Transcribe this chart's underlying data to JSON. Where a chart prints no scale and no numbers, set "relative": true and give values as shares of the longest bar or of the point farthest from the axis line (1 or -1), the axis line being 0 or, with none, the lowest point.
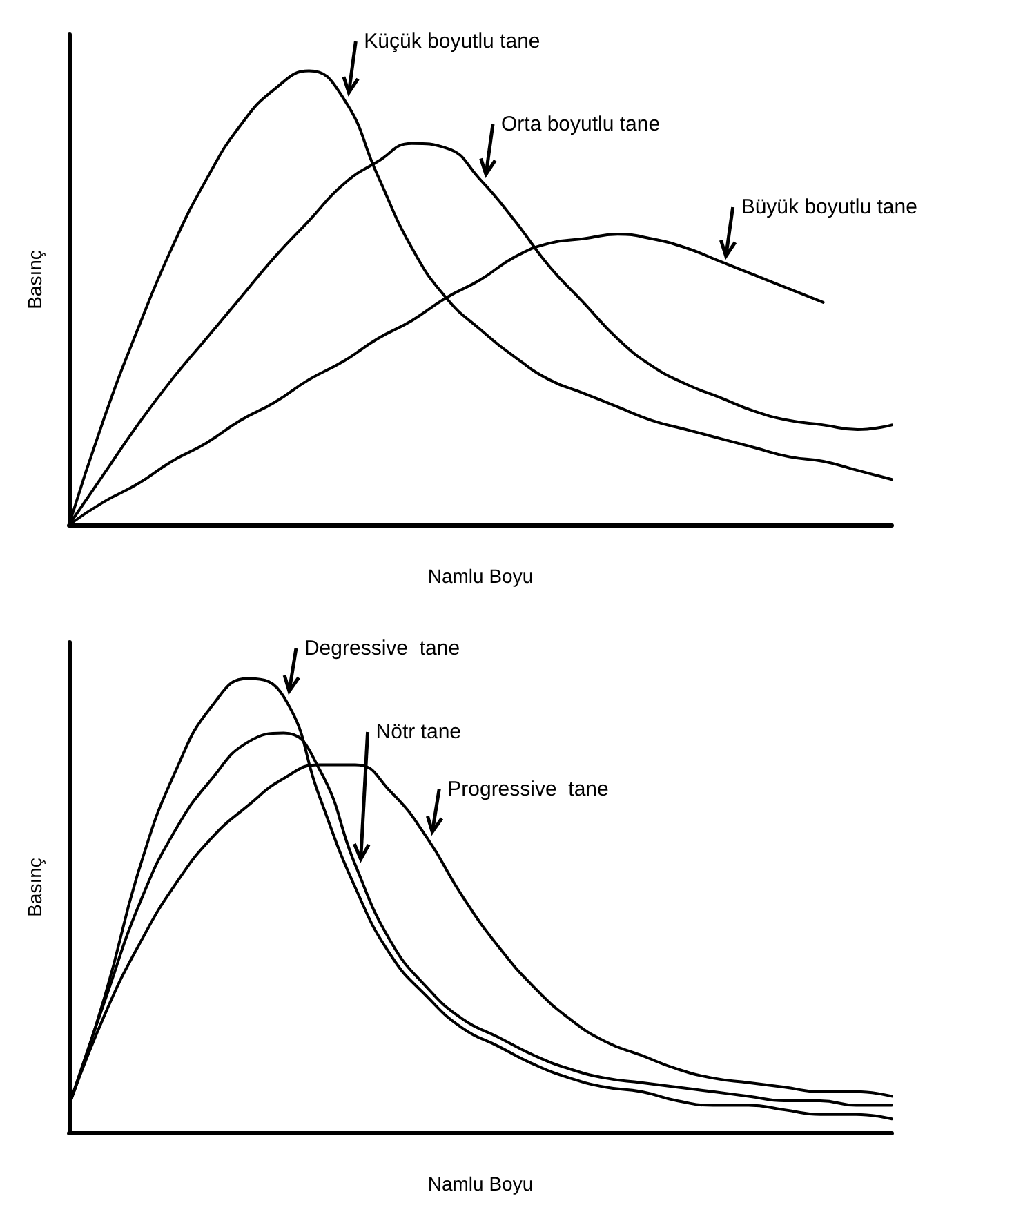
{
  "chart_data": [
    {
      "type": "line",
      "relative": true,
      "xlabel": "Namlu Boyu",
      "ylabel": "Basınç",
      "categories": [
        null,
        null,
        null,
        null,
        null,
        null,
        null,
        null,
        null,
        null,
        null,
        null,
        null,
        null,
        null,
        null,
        null,
        null,
        null,
        null,
        null,
        null,
        null,
        null,
        null
      ],
      "marker": "none",
      "line_style": "solid",
      "grid": false,
      "legend": false,
      "series": [
        {
          "name": "Küçük boyutlu tane",
          "color": "#000000",
          "values": [
            0,
            0.23,
            0.43,
            0.61,
            0.76,
            0.88,
            0.96,
            1.0,
            0.94,
            0.77,
            0.61,
            0.5,
            0.43,
            0.37,
            0.32,
            0.29,
            0.26,
            0.23,
            0.21,
            0.19,
            0.17,
            0.15,
            0.14,
            0.12,
            0.1
          ]
        },
        {
          "name": "Orta boyutlu tane",
          "color": "#000000",
          "values": [
            0,
            0.11,
            0.22,
            0.32,
            0.41,
            0.5,
            0.59,
            0.67,
            0.75,
            0.8,
            0.84,
            0.83,
            0.76,
            0.67,
            0.57,
            0.49,
            0.41,
            0.35,
            0.31,
            0.28,
            0.25,
            0.23,
            0.22,
            0.21,
            0.22
          ]
        },
        {
          "name": "Büyük boyutlu tane",
          "color": "#000000",
          "values": [
            0,
            0.05,
            0.09,
            0.14,
            0.18,
            0.23,
            0.27,
            0.32,
            0.36,
            0.41,
            0.45,
            0.5,
            0.54,
            0.59,
            0.62,
            0.63,
            0.64,
            0.63,
            0.61,
            0.58,
            0.55,
            0.52,
            0.49,
            null,
            null
          ]
        }
      ]
    },
    {
      "type": "line",
      "relative": true,
      "xlabel": "Namlu Boyu",
      "ylabel": "Basınç",
      "categories": [
        null,
        null,
        null,
        null,
        null,
        null,
        null,
        null,
        null,
        null,
        null,
        null,
        null,
        null,
        null,
        null,
        null,
        null,
        null,
        null,
        null,
        null,
        null,
        null
      ],
      "marker": "none",
      "line_style": "solid",
      "grid": false,
      "legend": false,
      "series": [
        {
          "name": "Degressive  tane",
          "color": "#000000",
          "values": [
            0.06,
            0.3,
            0.59,
            0.8,
            0.94,
            1.0,
            0.96,
            0.74,
            0.54,
            0.39,
            0.3,
            0.23,
            0.19,
            0.15,
            0.12,
            0.1,
            0.09,
            0.07,
            0.06,
            0.06,
            0.05,
            0.04,
            0.04,
            0.03
          ]
        },
        {
          "name": "Nötr tane",
          "color": "#000000",
          "values": [
            0.06,
            0.29,
            0.51,
            0.67,
            0.78,
            0.86,
            0.88,
            0.8,
            0.59,
            0.42,
            0.32,
            0.25,
            0.21,
            0.17,
            0.14,
            0.12,
            0.11,
            0.1,
            0.09,
            0.08,
            0.07,
            0.07,
            0.06,
            0.06
          ]
        },
        {
          "name": "Progressive  tane",
          "color": "#000000",
          "values": [
            0.06,
            0.26,
            0.42,
            0.55,
            0.65,
            0.72,
            0.78,
            0.81,
            0.81,
            0.75,
            0.65,
            0.52,
            0.41,
            0.32,
            0.25,
            0.2,
            0.17,
            0.14,
            0.12,
            0.11,
            0.1,
            0.09,
            0.09,
            0.08
          ]
        }
      ]
    }
  ]
}
